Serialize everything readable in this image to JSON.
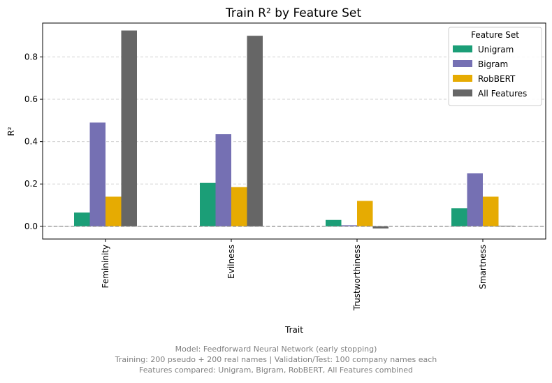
{
  "chart_data": {
    "type": "bar",
    "title": "Train R² by Feature Set",
    "xlabel": "Trait",
    "ylabel": "R²",
    "categories": [
      "Femininity",
      "Evilness",
      "Trustworthiness",
      "Smartness"
    ],
    "ylim": [
      -0.06,
      0.96
    ],
    "yticks": [
      0.0,
      0.2,
      0.4,
      0.6,
      0.8
    ],
    "ytick_labels": [
      "0.0",
      "0.2",
      "0.4",
      "0.6",
      "0.8"
    ],
    "grid": "y-dashed",
    "reference_line": 0.0,
    "legend": {
      "title": "Feature Set",
      "placement": "top-right"
    },
    "series": [
      {
        "name": "Unigram",
        "color": "#1b9e77",
        "values": [
          0.065,
          0.205,
          0.03,
          0.085
        ]
      },
      {
        "name": "Bigram",
        "color": "#7570b3",
        "values": [
          0.49,
          0.435,
          0.005,
          0.25
        ]
      },
      {
        "name": "RobBERT",
        "color": "#e6ab02",
        "values": [
          0.14,
          0.185,
          0.12,
          0.14
        ]
      },
      {
        "name": "All Features",
        "color": "#666666",
        "values": [
          0.925,
          0.9,
          -0.01,
          0.003
        ]
      }
    ]
  },
  "caption": {
    "line1": "Model: Feedforward Neural Network (early stopping)",
    "line2": "Training: 200 pseudo + 200 real names | Validation/Test: 100 company names each",
    "line3": "Features compared: Unigram, Bigram, RobBERT, All Features combined"
  }
}
